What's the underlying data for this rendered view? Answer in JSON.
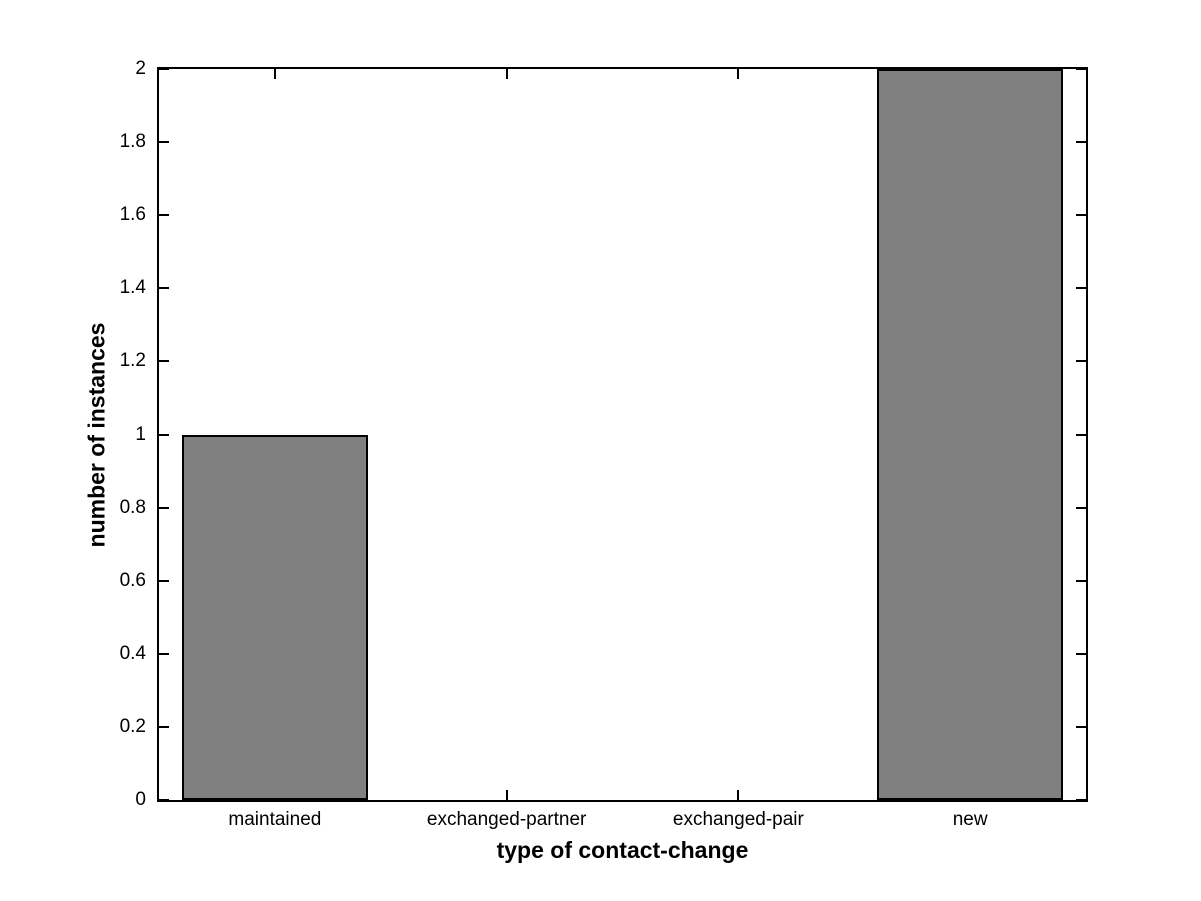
{
  "chart_data": {
    "type": "bar",
    "title": "",
    "categories": [
      "maintained",
      "exchanged-partner",
      "exchanged-pair",
      "new"
    ],
    "values": [
      1,
      0,
      0,
      2
    ],
    "xlabel": "type of contact-change",
    "ylabel": "number of instances",
    "ylim": [
      0,
      2
    ],
    "yticks": [
      0,
      0.2,
      0.4,
      0.6,
      0.8,
      1,
      1.2,
      1.4,
      1.6,
      1.8,
      2
    ],
    "ytick_labels": [
      "0",
      "0.2",
      "0.4",
      "0.6",
      "0.8",
      "1",
      "1.2",
      "1.4",
      "1.6",
      "1.8",
      "2"
    ],
    "bar_width_ratio": 0.8,
    "grid": false,
    "legend": null,
    "colors": {
      "bar_fill": "#808080",
      "bar_edge": "#000000",
      "axis": "#000000",
      "background": "#ffffff",
      "text": "#000000"
    }
  }
}
